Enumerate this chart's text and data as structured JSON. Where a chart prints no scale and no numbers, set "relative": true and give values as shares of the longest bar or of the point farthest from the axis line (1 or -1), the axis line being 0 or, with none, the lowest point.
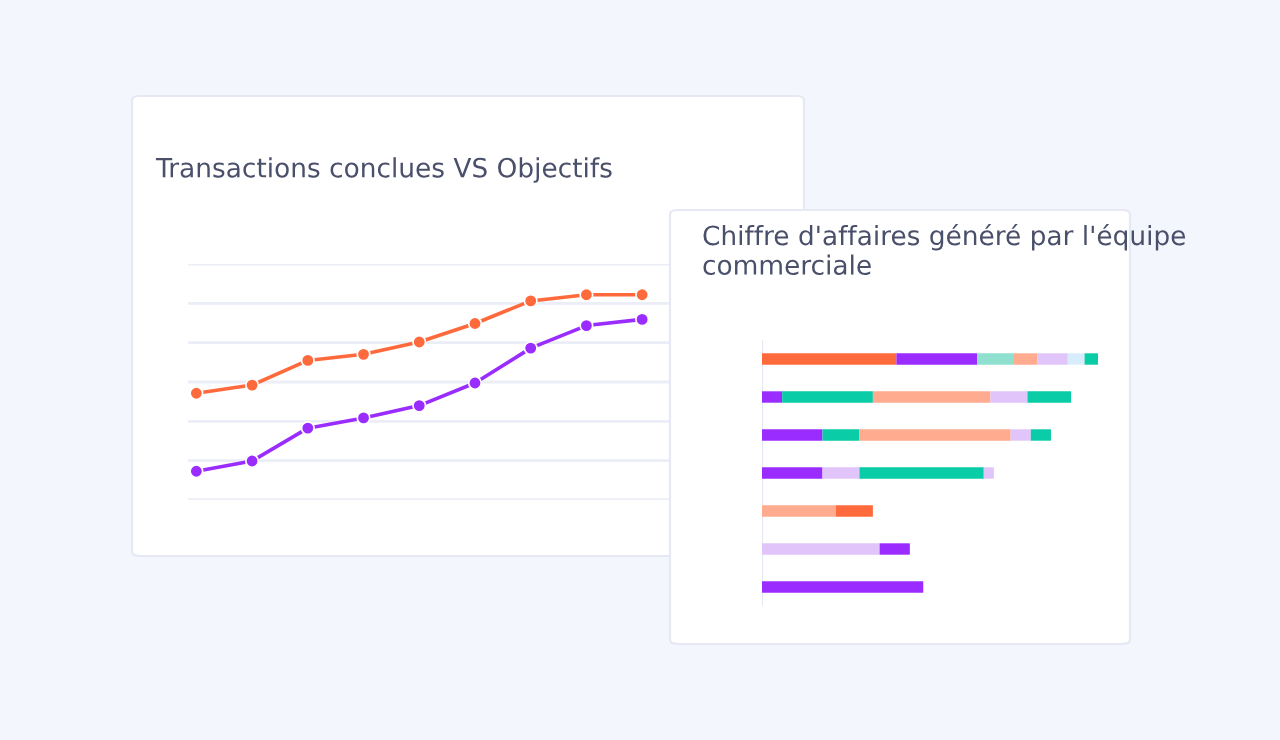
{
  "chart_data": [
    {
      "type": "line",
      "title": "Transactions conclues VS Objectifs",
      "relative": true,
      "grid": "y",
      "marker": "circle",
      "line_style": "solid",
      "categories": [
        null,
        null,
        null,
        null,
        null,
        null,
        null,
        null,
        null
      ],
      "series": [
        {
          "color": "#ff6a3d",
          "values": [
            0.52,
            0.56,
            0.68,
            0.71,
            0.77,
            0.86,
            0.97,
            1.0,
            1.0
          ]
        },
        {
          "color": "#9b2cff",
          "values": [
            0.14,
            0.19,
            0.35,
            0.4,
            0.46,
            0.57,
            0.74,
            0.85,
            0.88
          ]
        }
      ]
    },
    {
      "type": "bar",
      "title": "Chiffre d'affaires généré par l'équipe commerciale",
      "relative": true,
      "stacked": true,
      "orientation": "horizontal",
      "categories": [
        null,
        null,
        null,
        null,
        null,
        null,
        null
      ],
      "series": [
        {
          "colors": [
            "#ff6a3d",
            "#9b2cff",
            "#9b2cff",
            "#9b2cff",
            "#ffab8f",
            "#e0c4fa",
            "#9b2cff"
          ],
          "values": [
            0.4,
            0.06,
            0.18,
            0.18,
            0.22,
            0.35,
            0.48
          ]
        },
        {
          "colors": [
            "#9b2cff",
            "#0acca6",
            "#0acca6",
            "#e0c4fa",
            "#ff6a3d",
            "#9b2cff",
            null
          ],
          "values": [
            0.24,
            0.27,
            0.11,
            0.11,
            0.11,
            0.09,
            null
          ]
        },
        {
          "colors": [
            "#8fe0cf",
            "#ffab8f",
            "#ffab8f",
            "#0acca6",
            null,
            null,
            null
          ],
          "values": [
            0.11,
            0.35,
            0.45,
            0.37,
            null,
            null,
            null
          ]
        },
        {
          "colors": [
            "#ffab8f",
            "#e0c4fa",
            "#e0c4fa",
            "#e0c4fa",
            null,
            null,
            null
          ],
          "values": [
            0.07,
            0.11,
            0.06,
            0.03,
            null,
            null,
            null
          ]
        },
        {
          "colors": [
            "#e0c4fa",
            "#0acca6",
            "#0acca6",
            null,
            null,
            null,
            null
          ],
          "values": [
            0.09,
            0.13,
            0.06,
            null,
            null,
            null,
            null
          ]
        },
        {
          "colors": [
            "#d8ecfb",
            null,
            null,
            null,
            null,
            null,
            null
          ],
          "values": [
            0.05,
            null,
            null,
            null,
            null,
            null,
            null
          ]
        },
        {
          "colors": [
            "#0acca6",
            null,
            null,
            null,
            null,
            null,
            null
          ],
          "values": [
            0.04,
            null,
            null,
            null,
            null,
            null,
            null
          ]
        }
      ]
    }
  ]
}
